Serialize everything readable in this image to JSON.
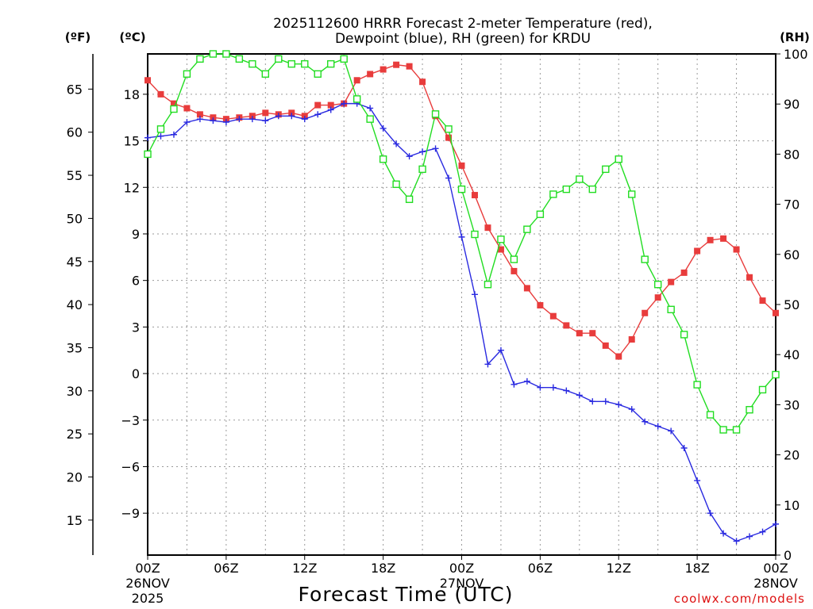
{
  "chart_data": {
    "type": "line",
    "title_line1": "2025112600 HRRR Forecast 2-meter Temperature (red),",
    "title_line2": "Dewpoint (blue), RH (green) for KRDU",
    "xlabel": "Forecast Time (UTC)",
    "credit": "coolwx.com/models",
    "units": {
      "fahrenheit": "(ºF)",
      "celsius": "(ºC)",
      "rh": "(RH)"
    },
    "x": [
      0,
      1,
      2,
      3,
      4,
      5,
      6,
      7,
      8,
      9,
      10,
      11,
      12,
      13,
      14,
      15,
      16,
      17,
      18,
      19,
      20,
      21,
      22,
      23,
      24,
      25,
      26,
      27,
      28,
      29,
      30,
      31,
      32,
      33,
      34,
      35,
      36,
      37,
      38,
      39,
      40,
      41,
      42,
      43,
      44,
      45,
      46,
      47,
      48
    ],
    "xlim": [
      0,
      48
    ],
    "x_ticks": [
      {
        "x": 0,
        "label": "00Z",
        "date": "26NOV",
        "year": "2025"
      },
      {
        "x": 6,
        "label": "06Z"
      },
      {
        "x": 12,
        "label": "12Z"
      },
      {
        "x": 18,
        "label": "18Z"
      },
      {
        "x": 24,
        "label": "00Z",
        "date": "27NOV"
      },
      {
        "x": 30,
        "label": "06Z"
      },
      {
        "x": 36,
        "label": "12Z"
      },
      {
        "x": 42,
        "label": "18Z"
      },
      {
        "x": 48,
        "label": "00Z",
        "date": "28NOV"
      }
    ],
    "y_celsius": {
      "range": [
        -11.7,
        20.6
      ],
      "ticks": [
        "18",
        "15",
        "12",
        "9",
        "6",
        "3",
        "0",
        "−3",
        "−6",
        "−9"
      ],
      "tick_values": [
        18,
        15,
        12,
        9,
        6,
        3,
        0,
        -3,
        -6,
        -9
      ]
    },
    "y_fahrenheit": {
      "ticks": [
        "65",
        "60",
        "55",
        "50",
        "45",
        "40",
        "35",
        "30",
        "25",
        "20",
        "15"
      ],
      "tick_values": [
        65,
        60,
        55,
        50,
        45,
        40,
        35,
        30,
        25,
        20,
        15
      ]
    },
    "y_rh": {
      "range": [
        0,
        100
      ],
      "ticks": [
        "100",
        "90",
        "80",
        "70",
        "60",
        "50",
        "40",
        "30",
        "20",
        "10",
        "0"
      ],
      "tick_values": [
        100,
        90,
        80,
        70,
        60,
        50,
        40,
        30,
        20,
        10,
        0
      ]
    },
    "grid": true,
    "series": [
      {
        "axis": "celsius",
        "color": "#e83c3c",
        "marker": "filled-square",
        "values": [
          18.9,
          18.0,
          17.4,
          17.1,
          16.7,
          16.5,
          16.4,
          16.5,
          16.6,
          16.8,
          16.7,
          16.8,
          16.6,
          17.3,
          17.3,
          17.4,
          18.9,
          19.3,
          19.6,
          19.9,
          19.8,
          18.8,
          16.6,
          15.2,
          13.4,
          11.5,
          9.4,
          8.0,
          6.6,
          5.5,
          4.4,
          3.7,
          3.1,
          2.6,
          2.6,
          1.8,
          1.1,
          2.2,
          3.9,
          4.9,
          5.9,
          6.5,
          7.9,
          8.6,
          8.7,
          8.0,
          6.2,
          4.7,
          3.9
        ]
      },
      {
        "axis": "celsius",
        "color": "#2a2ae0",
        "marker": "plus",
        "values": [
          15.2,
          15.3,
          15.4,
          16.2,
          16.4,
          16.3,
          16.2,
          16.4,
          16.4,
          16.3,
          16.6,
          16.6,
          16.4,
          16.7,
          17.0,
          17.4,
          17.4,
          17.1,
          15.8,
          14.8,
          14.0,
          14.3,
          14.5,
          12.6,
          8.8,
          5.1,
          0.6,
          1.5,
          -0.7,
          -0.5,
          -0.9,
          -0.9,
          -1.1,
          -1.4,
          -1.8,
          -1.8,
          -2.0,
          -2.3,
          -3.1,
          -3.4,
          -3.7,
          -4.8,
          -6.9,
          -9.0,
          -10.3,
          -10.8,
          -10.5,
          -10.2,
          -9.7
        ]
      },
      {
        "axis": "rh",
        "color": "#22dd22",
        "marker": "open-square",
        "values": [
          80,
          85,
          89,
          96,
          99,
          100,
          100,
          99,
          98,
          96,
          99,
          98,
          98,
          96,
          98,
          99,
          91,
          87,
          79,
          74,
          71,
          77,
          88,
          85,
          73,
          64,
          54,
          63,
          59,
          65,
          68,
          72,
          73,
          75,
          73,
          77,
          79,
          72,
          59,
          54,
          49,
          44,
          34,
          28,
          25,
          25,
          29,
          33,
          36
        ]
      }
    ]
  }
}
